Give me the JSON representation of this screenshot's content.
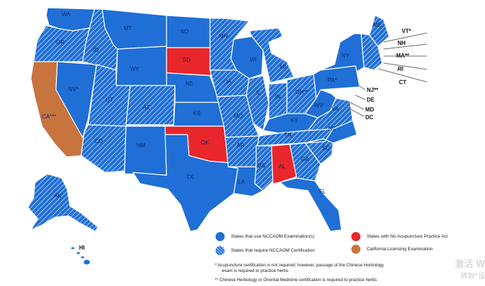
{
  "colors": {
    "nccaom_exam": "#1f6fd6",
    "nccaom_cert": "#1f6fd6",
    "hatch_line": "#c9dbf5",
    "no_practice_act": "#e8262c",
    "california_exam": "#c8743e"
  },
  "states": [
    {
      "id": "WA",
      "label": "WA",
      "category": "nccaom_exam"
    },
    {
      "id": "OR",
      "label": "OR",
      "category": "nccaom_cert"
    },
    {
      "id": "CA",
      "label": "CA***",
      "category": "california_exam"
    },
    {
      "id": "NV",
      "label": "NV*",
      "category": "nccaom_exam"
    },
    {
      "id": "ID",
      "label": "ID",
      "category": "nccaom_cert"
    },
    {
      "id": "MT",
      "label": "MT",
      "category": "nccaom_exam"
    },
    {
      "id": "WY",
      "label": "WY",
      "category": "nccaom_exam"
    },
    {
      "id": "UT",
      "label": "UT",
      "category": "nccaom_cert"
    },
    {
      "id": "AZ",
      "label": "AZ",
      "category": "nccaom_cert"
    },
    {
      "id": "CO",
      "label": "CO",
      "category": "nccaom_cert"
    },
    {
      "id": "NM",
      "label": "NM",
      "category": "nccaom_exam"
    },
    {
      "id": "ND",
      "label": "ND",
      "category": "nccaom_exam"
    },
    {
      "id": "SD",
      "label": "SD",
      "category": "no_practice_act"
    },
    {
      "id": "NE",
      "label": "NE",
      "category": "nccaom_exam"
    },
    {
      "id": "KS",
      "label": "KS",
      "category": "nccaom_exam"
    },
    {
      "id": "OK",
      "label": "OK",
      "category": "no_practice_act"
    },
    {
      "id": "TX",
      "label": "TX",
      "category": "nccaom_exam"
    },
    {
      "id": "MN",
      "label": "MN",
      "category": "nccaom_cert"
    },
    {
      "id": "IA",
      "label": "IA",
      "category": "nccaom_cert"
    },
    {
      "id": "MO",
      "label": "MO",
      "category": "nccaom_cert"
    },
    {
      "id": "AR",
      "label": "AR",
      "category": "nccaom_cert"
    },
    {
      "id": "LA",
      "label": "LA",
      "category": "nccaom_exam"
    },
    {
      "id": "WI",
      "label": "WI",
      "category": "nccaom_exam"
    },
    {
      "id": "IL",
      "label": "IL",
      "category": "nccaom_cert"
    },
    {
      "id": "MI",
      "label": "MI",
      "category": "nccaom_cert"
    },
    {
      "id": "IN",
      "label": "IN",
      "category": "nccaom_cert"
    },
    {
      "id": "OH",
      "label": "OH**",
      "category": "nccaom_cert"
    },
    {
      "id": "KY",
      "label": "KY",
      "category": "nccaom_exam"
    },
    {
      "id": "TN",
      "label": "TN",
      "category": "nccaom_cert"
    },
    {
      "id": "MS",
      "label": "MS",
      "category": "nccaom_cert"
    },
    {
      "id": "AL",
      "label": "AL",
      "category": "no_practice_act"
    },
    {
      "id": "GA",
      "label": "GA",
      "category": "nccaom_cert"
    },
    {
      "id": "FL",
      "label": "FL",
      "category": "nccaom_exam"
    },
    {
      "id": "SC",
      "label": "SC",
      "category": "nccaom_cert"
    },
    {
      "id": "NC",
      "label": "NC",
      "category": "nccaom_exam"
    },
    {
      "id": "VA",
      "label": "VA",
      "category": "nccaom_cert"
    },
    {
      "id": "WV",
      "label": "WV",
      "category": "nccaom_exam"
    },
    {
      "id": "PA",
      "label": "PA*",
      "category": "nccaom_exam"
    },
    {
      "id": "NY",
      "label": "NY",
      "category": "nccaom_exam"
    },
    {
      "id": "ME",
      "label": "ME",
      "category": "nccaom_cert"
    },
    {
      "id": "NEW_ENG",
      "label": "",
      "category": "nccaom_cert"
    },
    {
      "id": "AK",
      "label": "AK",
      "category": "nccaom_cert"
    },
    {
      "id": "HI",
      "label": "HI",
      "category": "nccaom_exam"
    }
  ],
  "side_labels": [
    "VT*",
    "NH",
    "MA**",
    "RI",
    "CT",
    "NJ**",
    "DE",
    "MD",
    "DC"
  ],
  "legend": {
    "nccaom_exam": "States that use NCCAOM Examination(s)",
    "nccaom_cert": "States that require NCCAOM Certification",
    "no_practice_act": "States with No Acupuncture Practice Act",
    "california_exam": "California Licensing Examination"
  },
  "footnotes": [
    "* Acupuncture certification is not required; however, passage of the Chinese Herbology",
    "exam is required to practice herbs",
    "** Chinese Herbology or Oriental Medicine certification is required to practice herbs"
  ],
  "watermark": [
    "激活 W",
    "转到\"设"
  ]
}
